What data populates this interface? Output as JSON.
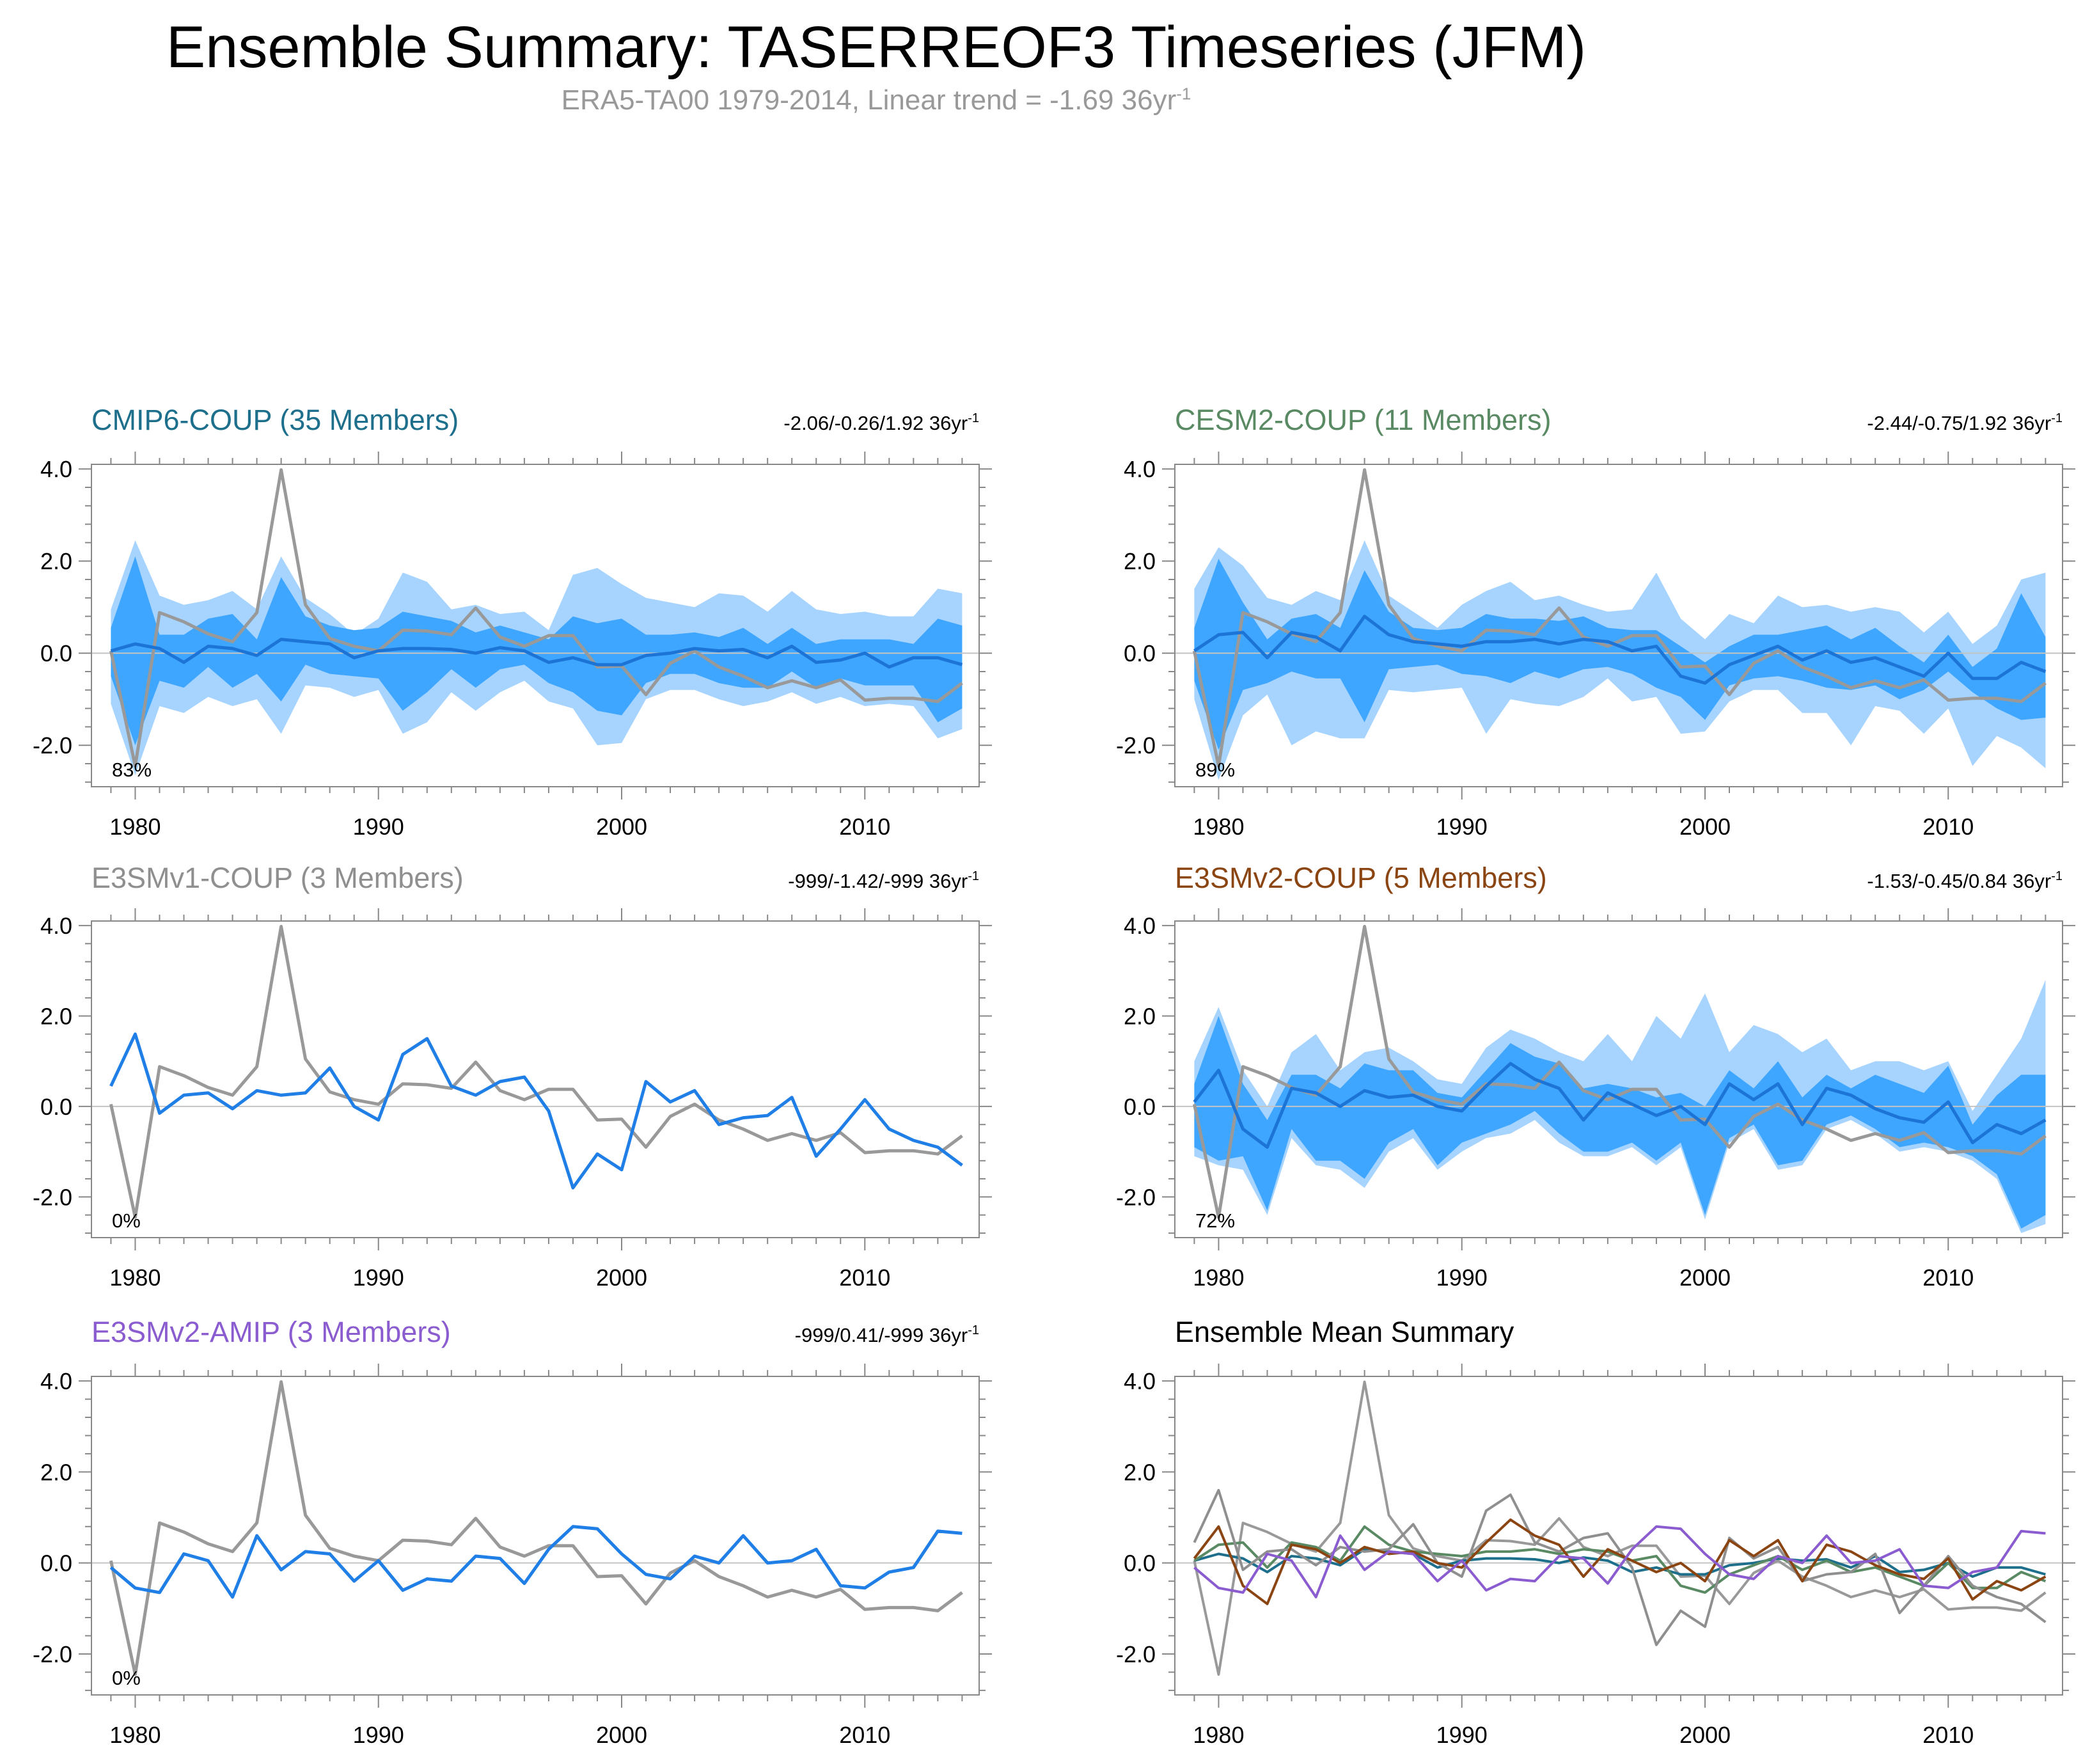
{
  "figure": {
    "title": "Ensemble Summary: TASERREOF3 Timeseries (JFM)",
    "subtitle_main": "ERA5-TA00 1979-2014, Linear trend = -1.69 36yr",
    "subtitle_sup": "-1"
  },
  "colors": {
    "obs": "#999999",
    "band_outer": "#a6d4ff",
    "band_inner": "#3fa6ff",
    "mean_line": "#1c74d6",
    "single_member": "#1f7fe6",
    "zero_line": "#c4c4c4",
    "cmip6": "#1d6f8c",
    "cesm2": "#5a8a63",
    "e3smv1": "#8f8f8f",
    "e3smv2": "#8a4512",
    "amip": "#8a5cd0"
  },
  "chart_data": [
    {
      "type": "line",
      "id": "cmip6",
      "title": "CMIP6-COUP (35 Members)",
      "trend_label": "-2.06/-0.26/1.92 36yr",
      "trend_sup": "-1",
      "percent_label": "83%",
      "xlim": [
        1978.2,
        2014.7
      ],
      "ylim": [
        -2.9,
        4.1
      ],
      "xticks": [
        1980,
        1990,
        2000,
        2010
      ],
      "yticks": [
        4.0,
        2.0,
        0.0,
        -2.0
      ],
      "x_start": 1979,
      "observed": [
        0.05,
        -2.45,
        0.88,
        0.68,
        0.42,
        0.25,
        0.88,
        3.98,
        1.05,
        0.32,
        0.15,
        0.05,
        0.5,
        0.48,
        0.4,
        0.98,
        0.35,
        0.15,
        0.38,
        0.38,
        -0.3,
        -0.28,
        -0.9,
        -0.22,
        0.05,
        -0.3,
        -0.5,
        -0.75,
        -0.6,
        -0.75,
        -0.58,
        -1.02,
        -0.98,
        -0.98,
        -1.05,
        -0.65
      ],
      "ens_mean": [
        0.05,
        0.2,
        0.1,
        -0.2,
        0.15,
        0.1,
        -0.05,
        0.3,
        0.25,
        0.2,
        -0.1,
        0.05,
        0.1,
        0.1,
        0.08,
        0.0,
        0.12,
        0.05,
        -0.2,
        -0.1,
        -0.25,
        -0.25,
        -0.05,
        0.0,
        0.1,
        0.05,
        0.08,
        -0.1,
        0.15,
        -0.2,
        -0.15,
        0.0,
        -0.3,
        -0.1,
        -0.1,
        -0.25
      ],
      "inner_hi": [
        0.55,
        2.1,
        0.4,
        0.4,
        0.75,
        0.85,
        0.3,
        1.65,
        0.8,
        0.6,
        0.5,
        0.55,
        0.9,
        0.8,
        0.7,
        0.45,
        0.6,
        0.45,
        0.3,
        0.8,
        0.65,
        0.75,
        0.4,
        0.4,
        0.45,
        0.35,
        0.55,
        0.2,
        0.55,
        0.2,
        0.3,
        0.3,
        0.3,
        0.2,
        0.75,
        0.6
      ],
      "inner_lo": [
        -0.5,
        -2.0,
        -0.6,
        -0.75,
        -0.3,
        -0.75,
        -0.45,
        -1.05,
        -0.25,
        -0.45,
        -0.5,
        -0.55,
        -1.25,
        -0.85,
        -0.35,
        -0.75,
        -0.35,
        -0.25,
        -0.65,
        -0.85,
        -1.25,
        -1.35,
        -0.65,
        -0.45,
        -0.45,
        -0.65,
        -0.75,
        -0.75,
        -0.4,
        -0.75,
        -0.55,
        -0.7,
        -0.7,
        -0.7,
        -1.5,
        -1.2
      ],
      "outer_hi": [
        0.95,
        2.45,
        1.25,
        1.05,
        1.15,
        1.35,
        0.95,
        2.1,
        1.2,
        0.85,
        0.4,
        0.75,
        1.75,
        1.55,
        0.95,
        1.05,
        0.85,
        0.9,
        0.5,
        1.7,
        1.85,
        1.5,
        1.2,
        1.1,
        1.0,
        1.3,
        1.25,
        0.9,
        1.35,
        0.95,
        0.85,
        0.9,
        0.8,
        0.8,
        1.4,
        1.3
      ],
      "outer_lo": [
        -1.1,
        -2.65,
        -1.15,
        -1.3,
        -0.95,
        -1.15,
        -1.0,
        -1.75,
        -0.7,
        -0.75,
        -0.95,
        -0.8,
        -1.75,
        -1.5,
        -0.85,
        -1.25,
        -0.85,
        -0.6,
        -1.05,
        -1.2,
        -2.0,
        -1.95,
        -1.0,
        -0.8,
        -0.8,
        -1.0,
        -1.15,
        -1.05,
        -0.85,
        -1.1,
        -0.95,
        -1.15,
        -1.1,
        -1.15,
        -1.85,
        -1.65
      ]
    },
    {
      "type": "line",
      "id": "cesm2",
      "title": "CESM2-COUP (11 Members)",
      "trend_label": "-2.44/-0.75/1.92 36yr",
      "trend_sup": "-1",
      "percent_label": "89%",
      "xlim": [
        1978.2,
        2014.7
      ],
      "ylim": [
        -2.9,
        4.1
      ],
      "xticks": [
        1980,
        1990,
        2000,
        2010
      ],
      "yticks": [
        4.0,
        2.0,
        0.0,
        -2.0
      ],
      "x_start": 1979,
      "observed": [
        0.05,
        -2.45,
        0.88,
        0.68,
        0.42,
        0.25,
        0.88,
        3.98,
        1.05,
        0.32,
        0.15,
        0.05,
        0.5,
        0.48,
        0.4,
        0.98,
        0.35,
        0.15,
        0.38,
        0.38,
        -0.3,
        -0.28,
        -0.9,
        -0.22,
        0.05,
        -0.3,
        -0.5,
        -0.75,
        -0.6,
        -0.75,
        -0.58,
        -1.02,
        -0.98,
        -0.98,
        -1.05,
        -0.65
      ],
      "ens_mean": [
        0.05,
        0.4,
        0.45,
        -0.1,
        0.45,
        0.35,
        0.05,
        0.8,
        0.4,
        0.25,
        0.2,
        0.15,
        0.25,
        0.25,
        0.3,
        0.2,
        0.3,
        0.25,
        0.05,
        0.15,
        -0.5,
        -0.65,
        -0.25,
        -0.05,
        0.15,
        -0.15,
        0.05,
        -0.2,
        -0.1,
        -0.3,
        -0.5,
        0.0,
        -0.55,
        -0.55,
        -0.2,
        -0.4
      ],
      "inner_hi": [
        0.55,
        2.05,
        1.1,
        0.3,
        0.75,
        0.85,
        0.55,
        1.8,
        0.9,
        0.55,
        0.5,
        0.55,
        0.85,
        0.75,
        0.75,
        0.7,
        0.8,
        0.55,
        0.5,
        0.5,
        0.15,
        -0.2,
        0.15,
        0.4,
        0.4,
        0.5,
        0.6,
        0.3,
        0.55,
        0.15,
        -0.2,
        0.4,
        -0.3,
        0.1,
        1.3,
        0.35
      ],
      "inner_lo": [
        -0.6,
        -2.1,
        -0.8,
        -0.65,
        -0.4,
        -0.55,
        -0.55,
        -1.5,
        -0.35,
        -0.3,
        -0.25,
        -0.45,
        -0.5,
        -0.65,
        -0.4,
        -0.55,
        -0.35,
        -0.3,
        -0.45,
        -0.75,
        -0.95,
        -1.45,
        -0.7,
        -0.55,
        -0.5,
        -0.6,
        -0.75,
        -0.8,
        -0.7,
        -1.0,
        -0.8,
        -0.4,
        -0.85,
        -1.2,
        -1.45,
        -1.4
      ],
      "outer_hi": [
        1.4,
        2.3,
        1.9,
        1.2,
        1.05,
        1.35,
        1.15,
        2.45,
        1.25,
        0.9,
        0.55,
        1.05,
        1.35,
        1.55,
        1.15,
        1.25,
        1.05,
        0.9,
        0.95,
        1.75,
        0.75,
        0.3,
        0.85,
        0.65,
        1.25,
        1.0,
        1.05,
        0.9,
        1.0,
        0.9,
        0.45,
        0.9,
        0.2,
        0.6,
        1.6,
        1.75
      ],
      "outer_lo": [
        -1.0,
        -2.75,
        -1.35,
        -0.9,
        -2.0,
        -1.7,
        -1.85,
        -1.85,
        -0.8,
        -0.85,
        -0.8,
        -0.75,
        -1.75,
        -1.0,
        -1.1,
        -1.15,
        -0.95,
        -0.55,
        -1.05,
        -0.95,
        -1.75,
        -1.7,
        -1.05,
        -0.8,
        -0.8,
        -1.3,
        -1.3,
        -2.0,
        -1.15,
        -1.25,
        -1.75,
        -1.2,
        -2.45,
        -1.8,
        -2.05,
        -2.5
      ]
    },
    {
      "type": "line",
      "id": "e3smv1",
      "title": "E3SMv1-COUP (3 Members)",
      "trend_label": "-999/-1.42/-999 36yr",
      "trend_sup": "-1",
      "percent_label": "0%",
      "xlim": [
        1978.2,
        2014.7
      ],
      "ylim": [
        -2.9,
        4.1
      ],
      "xticks": [
        1980,
        1990,
        2000,
        2010
      ],
      "yticks": [
        4.0,
        2.0,
        0.0,
        -2.0
      ],
      "x_start": 1979,
      "observed": [
        0.05,
        -2.45,
        0.88,
        0.68,
        0.42,
        0.25,
        0.88,
        3.98,
        1.05,
        0.32,
        0.15,
        0.05,
        0.5,
        0.48,
        0.4,
        0.98,
        0.35,
        0.15,
        0.38,
        0.38,
        -0.3,
        -0.28,
        -0.9,
        -0.22,
        0.05,
        -0.3,
        -0.5,
        -0.75,
        -0.6,
        -0.75,
        -0.58,
        -1.02,
        -0.98,
        -0.98,
        -1.05,
        -0.65
      ],
      "ens_mean": [
        0.45,
        1.6,
        -0.15,
        0.25,
        0.3,
        -0.05,
        0.35,
        0.25,
        0.3,
        0.85,
        0.0,
        -0.3,
        1.15,
        1.5,
        0.45,
        0.25,
        0.55,
        0.65,
        -0.1,
        -1.8,
        -1.05,
        -1.4,
        0.55,
        0.1,
        0.35,
        -0.4,
        -0.25,
        -0.2,
        0.2,
        -1.1,
        -0.5,
        0.15,
        -0.5,
        -0.75,
        -0.9,
        -1.3
      ]
    },
    {
      "type": "line",
      "id": "e3smv2",
      "title": "E3SMv2-COUP (5 Members)",
      "trend_label": "-1.53/-0.45/0.84 36yr",
      "trend_sup": "-1",
      "percent_label": "72%",
      "xlim": [
        1978.2,
        2014.7
      ],
      "ylim": [
        -2.9,
        4.1
      ],
      "xticks": [
        1980,
        1990,
        2000,
        2010
      ],
      "yticks": [
        4.0,
        2.0,
        0.0,
        -2.0
      ],
      "x_start": 1979,
      "observed": [
        0.05,
        -2.45,
        0.88,
        0.68,
        0.42,
        0.25,
        0.88,
        3.98,
        1.05,
        0.32,
        0.15,
        0.05,
        0.5,
        0.48,
        0.4,
        0.98,
        0.35,
        0.15,
        0.38,
        0.38,
        -0.3,
        -0.28,
        -0.9,
        -0.22,
        0.05,
        -0.3,
        -0.5,
        -0.75,
        -0.6,
        -0.75,
        -0.58,
        -1.02,
        -0.98,
        -0.98,
        -1.05,
        -0.65
      ],
      "ens_mean": [
        0.1,
        0.8,
        -0.5,
        -0.9,
        0.4,
        0.3,
        0.0,
        0.35,
        0.2,
        0.25,
        0.0,
        -0.1,
        0.45,
        0.95,
        0.6,
        0.4,
        -0.3,
        0.3,
        0.05,
        -0.2,
        0.0,
        -0.4,
        0.5,
        0.15,
        0.5,
        -0.4,
        0.4,
        0.25,
        -0.05,
        -0.25,
        -0.35,
        0.1,
        -0.8,
        -0.4,
        -0.6,
        -0.3
      ],
      "inner_hi": [
        0.5,
        2.0,
        0.5,
        -0.3,
        0.7,
        0.7,
        0.4,
        0.95,
        0.8,
        0.8,
        0.3,
        0.2,
        0.8,
        1.4,
        1.1,
        0.95,
        0.4,
        0.5,
        0.4,
        0.2,
        0.3,
        0.0,
        0.8,
        0.4,
        1.0,
        0.2,
        0.7,
        0.4,
        0.7,
        0.5,
        0.3,
        0.9,
        -0.4,
        0.25,
        0.7,
        0.7
      ],
      "inner_lo": [
        -0.9,
        -1.2,
        -1.1,
        -2.3,
        -0.5,
        -1.2,
        -1.2,
        -1.6,
        -0.8,
        -0.5,
        -1.3,
        -0.8,
        -0.6,
        -0.4,
        -0.1,
        -0.6,
        -1.0,
        -1.0,
        -0.8,
        -1.2,
        -0.8,
        -2.4,
        -0.7,
        -0.4,
        -1.3,
        -1.2,
        -0.4,
        -0.2,
        -0.5,
        -0.9,
        -0.8,
        -0.9,
        -1.1,
        -1.5,
        -2.7,
        -2.4
      ],
      "outer_hi": [
        1.0,
        2.2,
        0.8,
        0.0,
        1.2,
        1.6,
        0.8,
        1.2,
        1.3,
        1.0,
        0.6,
        0.5,
        1.3,
        1.7,
        1.5,
        1.2,
        1.0,
        1.6,
        1.0,
        2.0,
        1.5,
        2.5,
        1.2,
        1.8,
        1.6,
        1.2,
        1.5,
        0.8,
        1.0,
        1.0,
        0.8,
        1.0,
        -0.1,
        0.7,
        1.5,
        2.8
      ],
      "outer_lo": [
        -1.1,
        -1.3,
        -1.4,
        -2.4,
        -0.7,
        -1.3,
        -1.4,
        -1.8,
        -1.0,
        -0.7,
        -1.4,
        -1.0,
        -0.7,
        -0.6,
        -0.3,
        -0.8,
        -1.1,
        -1.1,
        -0.9,
        -1.3,
        -0.9,
        -2.5,
        -0.8,
        -0.5,
        -1.4,
        -1.3,
        -0.5,
        -0.3,
        -0.6,
        -1.0,
        -0.9,
        -1.0,
        -1.2,
        -1.6,
        -2.8,
        -2.6
      ]
    },
    {
      "type": "line",
      "id": "amip",
      "title": "E3SMv2-AMIP (3 Members)",
      "trend_label": "-999/0.41/-999 36yr",
      "trend_sup": "-1",
      "percent_label": "0%",
      "xlim": [
        1978.2,
        2014.7
      ],
      "ylim": [
        -2.9,
        4.1
      ],
      "xticks": [
        1980,
        1990,
        2000,
        2010
      ],
      "yticks": [
        4.0,
        2.0,
        0.0,
        -2.0
      ],
      "x_start": 1979,
      "observed": [
        0.05,
        -2.45,
        0.88,
        0.68,
        0.42,
        0.25,
        0.88,
        3.98,
        1.05,
        0.32,
        0.15,
        0.05,
        0.5,
        0.48,
        0.4,
        0.98,
        0.35,
        0.15,
        0.38,
        0.38,
        -0.3,
        -0.28,
        -0.9,
        -0.22,
        0.05,
        -0.3,
        -0.5,
        -0.75,
        -0.6,
        -0.75,
        -0.58,
        -1.02,
        -0.98,
        -0.98,
        -1.05,
        -0.65
      ],
      "ens_mean": [
        -0.1,
        -0.55,
        -0.65,
        0.2,
        0.05,
        -0.75,
        0.6,
        -0.15,
        0.25,
        0.2,
        -0.4,
        0.05,
        -0.6,
        -0.35,
        -0.4,
        0.15,
        0.1,
        -0.45,
        0.3,
        0.8,
        0.75,
        0.2,
        -0.25,
        -0.35,
        0.15,
        0.0,
        0.6,
        0.0,
        0.05,
        0.3,
        -0.5,
        -0.55,
        -0.2,
        -0.1,
        0.7,
        0.65
      ]
    },
    {
      "type": "line",
      "id": "summary",
      "title": "Ensemble Mean Summary",
      "xlim": [
        1978.2,
        2014.7
      ],
      "ylim": [
        -2.9,
        4.1
      ],
      "xticks": [
        1980,
        1990,
        2000,
        2010
      ],
      "yticks": [
        4.0,
        2.0,
        0.0,
        -2.0
      ],
      "x_start": 1979,
      "series": [
        {
          "name": "ERA5-TA00",
          "color_key": "obs",
          "ref": "cmip6.observed"
        },
        {
          "name": "CMIP6-COUP",
          "color_key": "cmip6",
          "ref": "cmip6.ens_mean"
        },
        {
          "name": "CESM2-COUP",
          "color_key": "cesm2",
          "ref": "cesm2.ens_mean"
        },
        {
          "name": "E3SMv1-COUP",
          "color_key": "e3smv1",
          "ref": "e3smv1.ens_mean"
        },
        {
          "name": "E3SMv2-COUP",
          "color_key": "e3smv2",
          "ref": "e3smv2.ens_mean"
        },
        {
          "name": "E3SMv2-AMIP",
          "color_key": "amip",
          "ref": "amip.ens_mean"
        }
      ]
    }
  ]
}
